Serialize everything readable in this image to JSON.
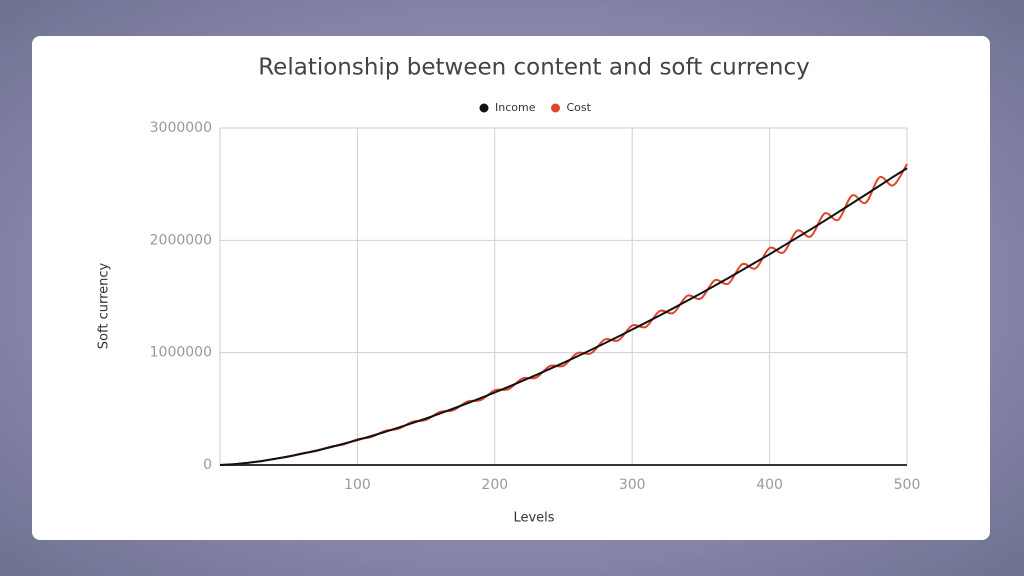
{
  "chart_data": {
    "type": "line",
    "title": "Relationship between content and soft currency",
    "x_label": "Levels",
    "y_label": "Soft currency",
    "x": [
      0,
      10,
      20,
      30,
      40,
      50,
      60,
      70,
      80,
      90,
      100,
      110,
      120,
      130,
      140,
      150,
      160,
      170,
      180,
      190,
      200,
      210,
      220,
      230,
      240,
      250,
      260,
      270,
      280,
      290,
      300,
      310,
      320,
      330,
      340,
      350,
      360,
      370,
      380,
      390,
      400,
      410,
      420,
      430,
      440,
      450,
      460,
      470,
      480,
      490,
      500
    ],
    "series": [
      {
        "name": "Income",
        "color": "#111111",
        "smooth": false,
        "values": [
          0,
          6400,
          18600,
          34800,
          54100,
          76400,
          101000,
          128000,
          157000,
          189000,
          222000,
          257000,
          294000,
          333000,
          373000,
          414000,
          458000,
          503000,
          549000,
          597000,
          646000,
          696000,
          748000,
          801000,
          855000,
          910000,
          967000,
          1025000,
          1084000,
          1144000,
          1206000,
          1268000,
          1331000,
          1396000,
          1462000,
          1528000,
          1596000,
          1665000,
          1735000,
          1806000,
          1876000,
          1950000,
          2024000,
          2098000,
          2174000,
          2251000,
          2329000,
          2407000,
          2486000,
          2566000,
          2642000
        ]
      },
      {
        "name": "Cost",
        "color": "#e0452c",
        "smooth": true,
        "values": [
          0,
          6200,
          19200,
          33800,
          55700,
          74100,
          104000,
          124000,
          162000,
          183000,
          229000,
          249000,
          303000,
          323000,
          384000,
          402000,
          472000,
          488000,
          565000,
          579000,
          665000,
          675000,
          770000,
          777000,
          881000,
          883000,
          996000,
          994000,
          1117000,
          1110000,
          1242000,
          1230000,
          1371000,
          1354000,
          1506000,
          1482000,
          1644000,
          1615000,
          1787000,
          1752000,
          1932000,
          1892000,
          2085000,
          2035000,
          2239000,
          2183000,
          2399000,
          2335000,
          2561000,
          2489000,
          2680000
        ]
      }
    ],
    "xlim": [
      0,
      500
    ],
    "xticks": [
      100,
      200,
      300,
      400,
      500
    ],
    "ylim": [
      0,
      3000000
    ],
    "yticks": [
      0,
      1000000,
      2000000,
      3000000
    ],
    "grid": true,
    "legend": "top"
  }
}
